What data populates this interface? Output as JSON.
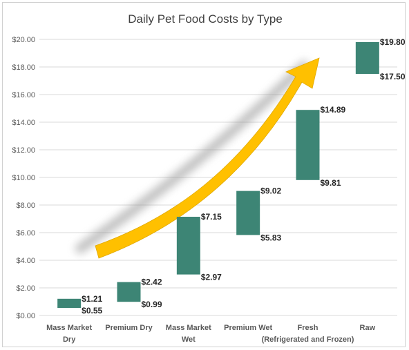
{
  "chart_data": {
    "type": "bar",
    "subtype": "floating-range",
    "title": "Daily Pet Food Costs by Type",
    "xlabel": "",
    "ylabel": "",
    "ylim": [
      0,
      20
    ],
    "yticks": [
      "$0.00",
      "$2.00",
      "$4.00",
      "$6.00",
      "$8.00",
      "$10.00",
      "$12.00",
      "$14.00",
      "$16.00",
      "$18.00",
      "$20.00"
    ],
    "grid": true,
    "legend": "none",
    "bar_color": "#3d8575",
    "arrow_color": "#ffc000",
    "categories": [
      [
        "Mass Market",
        "Dry"
      ],
      [
        "Premium Dry"
      ],
      [
        "Mass Market",
        "Wet"
      ],
      [
        "Premium Wet"
      ],
      [
        "Fresh",
        "(Refrigerated and Frozen)"
      ],
      [
        "Raw"
      ]
    ],
    "low": [
      0.55,
      0.99,
      2.97,
      5.83,
      9.81,
      17.5
    ],
    "high": [
      1.21,
      2.42,
      7.15,
      9.02,
      14.89,
      19.8
    ],
    "low_labels": [
      "$0.55",
      "$0.99",
      "$2.97",
      "$5.83",
      "$9.81",
      "$17.50"
    ],
    "high_labels": [
      "$1.21",
      "$2.42",
      "$7.15",
      "$9.02",
      "$14.89",
      "$19.80"
    ]
  }
}
